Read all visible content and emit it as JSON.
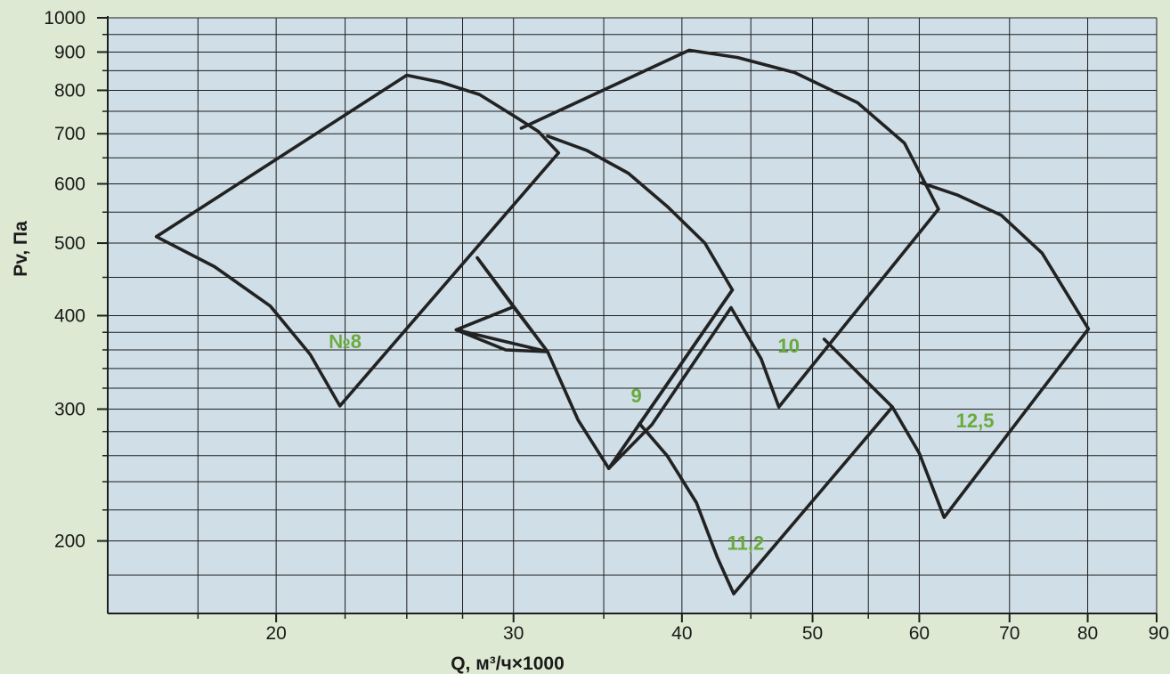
{
  "colors": {
    "page_background": "#dde9d3",
    "plot_background": "#cfdee7",
    "grid": "#1e1e1e",
    "curve": "#222222",
    "label": "#6aaa3c",
    "text": "#1a1a1a"
  },
  "chart_data": {
    "type": "line",
    "title": "",
    "xlabel": "Q, м³/ч×1000",
    "ylabel": "Pv, Па",
    "x_scale": "log",
    "y_scale": "log",
    "xlim": [
      15,
      90
    ],
    "ylim": [
      160,
      1000
    ],
    "grid": true,
    "x_ticks": [
      {
        "value": 20,
        "label": "20"
      },
      {
        "value": 30,
        "label": "30"
      },
      {
        "value": 40,
        "label": "40"
      },
      {
        "value": 50,
        "label": "50"
      },
      {
        "value": 60,
        "label": "60"
      },
      {
        "value": 70,
        "label": "70"
      },
      {
        "value": 80,
        "label": "80"
      },
      {
        "value": 90,
        "label": "90"
      }
    ],
    "y_ticks": [
      {
        "value": 200,
        "label": "200"
      },
      {
        "value": 300,
        "label": "300"
      },
      {
        "value": 400,
        "label": "400"
      },
      {
        "value": 500,
        "label": "500"
      },
      {
        "value": 600,
        "label": "600"
      },
      {
        "value": 700,
        "label": "700"
      },
      {
        "value": 800,
        "label": "800"
      },
      {
        "value": 900,
        "label": "900"
      },
      {
        "value": 1000,
        "label": "1000"
      }
    ],
    "x_grid": [
      17.5,
      20,
      22.5,
      25,
      27.5,
      30,
      35,
      40,
      45,
      50,
      55,
      60,
      70,
      80,
      90
    ],
    "y_grid": [
      160,
      180,
      200,
      220,
      240,
      260,
      280,
      300,
      320,
      340,
      360,
      380,
      400,
      450,
      500,
      550,
      600,
      650,
      700,
      750,
      800,
      850,
      900,
      950,
      1000
    ],
    "x_minor_ticks": [
      17.5,
      22.5,
      25,
      27.5,
      35,
      45,
      55
    ],
    "y_minor_ticks": [
      220,
      240,
      260,
      280,
      320,
      340,
      360,
      380,
      450,
      550,
      650,
      750,
      850,
      950
    ],
    "series": [
      {
        "name": "№8",
        "label": "№8",
        "label_at": [
          22.5,
          370
        ],
        "points": [
          [
            16.3,
            510
          ],
          [
            18.0,
            465
          ],
          [
            19.8,
            412
          ],
          [
            21.2,
            355
          ],
          [
            22.3,
            303
          ],
          [
            32.4,
            660
          ],
          [
            31.3,
            705
          ],
          [
            30.0,
            740
          ],
          [
            28.3,
            790
          ],
          [
            26.5,
            820
          ],
          [
            25.0,
            838
          ],
          [
            16.3,
            510
          ]
        ]
      },
      {
        "name": "9",
        "label": "9",
        "label_at": [
          37.0,
          313
        ],
        "points": [
          [
            31.8,
            695
          ],
          [
            34.0,
            665
          ],
          [
            36.5,
            620
          ],
          [
            39.0,
            560
          ],
          [
            41.6,
            500
          ],
          [
            43.6,
            433
          ],
          [
            35.3,
            250
          ],
          [
            33.5,
            290
          ],
          [
            31.8,
            358
          ],
          [
            27.2,
            383
          ],
          [
            30.0,
            411
          ],
          [
            27.2,
            383
          ],
          [
            29.6,
            360
          ],
          [
            31.8,
            358
          ],
          [
            30.0,
            411
          ],
          [
            28.2,
            478
          ],
          [
            31.8,
            358
          ],
          [
            33.5,
            290
          ],
          [
            35.3,
            250
          ]
        ]
      },
      {
        "name": "10",
        "label": "10",
        "label_at": [
          48.0,
          365
        ],
        "points": [
          [
            30.4,
            712
          ],
          [
            40.5,
            905
          ],
          [
            44.0,
            885
          ],
          [
            48.5,
            845
          ],
          [
            54.0,
            770
          ],
          [
            58.5,
            680
          ],
          [
            62.0,
            555
          ],
          [
            47.2,
            302
          ],
          [
            45.8,
            350
          ],
          [
            43.5,
            410
          ],
          [
            38.0,
            286
          ],
          [
            35.3,
            250
          ],
          [
            43.6,
            433
          ]
        ]
      },
      {
        "name": "11,2",
        "label": "11,2",
        "label_at": [
          44.6,
          199
        ],
        "points": [
          [
            37.2,
            287
          ],
          [
            39.0,
            260
          ],
          [
            41.0,
            225
          ],
          [
            42.5,
            190
          ],
          [
            43.7,
            170
          ],
          [
            57.3,
            302
          ],
          [
            51.0,
            372
          ],
          [
            57.3,
            302
          ],
          [
            43.7,
            170
          ],
          [
            42.5,
            190
          ],
          [
            41.0,
            225
          ],
          [
            39.0,
            260
          ],
          [
            37.2,
            287
          ]
        ]
      },
      {
        "name": "12,5",
        "label": "12,5",
        "label_at": [
          66.0,
          290
        ],
        "points": [
          [
            60.2,
            602
          ],
          [
            64.0,
            580
          ],
          [
            69.0,
            545
          ],
          [
            74.0,
            485
          ],
          [
            80.1,
            384
          ],
          [
            62.6,
            215
          ],
          [
            60.0,
            262
          ],
          [
            57.3,
            302
          ]
        ]
      }
    ]
  }
}
